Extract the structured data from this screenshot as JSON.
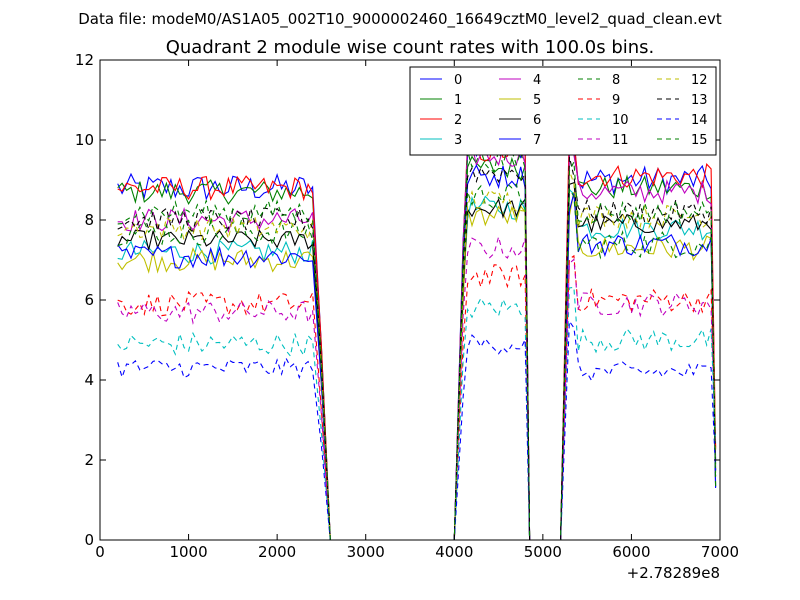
{
  "chart_data": {
    "type": "line",
    "suptitle": "Data file: modeM0/AS1A05_002T10_9000002460_16649cztM0_level2_quad_clean.evt",
    "title": "Quadrant 2 module wise count rates with 100.0s bins.",
    "xlabel": "",
    "ylabel": "",
    "x_offset_label": "+2.78289e8",
    "xlim": [
      0,
      7000
    ],
    "ylim": [
      0,
      12
    ],
    "xticks": [
      0,
      1000,
      2000,
      3000,
      4000,
      5000,
      6000,
      7000
    ],
    "yticks": [
      0,
      2,
      4,
      6,
      8,
      10,
      12
    ],
    "legend_position": "top-right",
    "legend_columns": 4,
    "segments": [
      {
        "x_start": 200,
        "x_end": 2400
      },
      {
        "x_start": 4100,
        "x_end": 4800
      },
      {
        "x_start": 5300,
        "x_end": 6900
      }
    ],
    "series": [
      {
        "name": "0",
        "color": "#0000ff",
        "dash": "solid",
        "seg_levels": [
          8.8,
          9.9,
          9.0
        ],
        "noise": 0.35
      },
      {
        "name": "1",
        "color": "#008000",
        "dash": "solid",
        "seg_levels": [
          8.7,
          9.3,
          8.8
        ],
        "noise": 0.3
      },
      {
        "name": "2",
        "color": "#ff0000",
        "dash": "solid",
        "seg_levels": [
          8.8,
          9.7,
          9.1
        ],
        "noise": 0.3
      },
      {
        "name": "3",
        "color": "#00bfbf",
        "dash": "solid",
        "seg_levels": [
          7.2,
          8.3,
          7.8
        ],
        "noise": 0.3
      },
      {
        "name": "4",
        "color": "#bf00bf",
        "dash": "solid",
        "seg_levels": [
          8.0,
          9.6,
          8.7
        ],
        "noise": 0.3
      },
      {
        "name": "5",
        "color": "#bfbf00",
        "dash": "solid",
        "seg_levels": [
          7.0,
          8.1,
          7.3
        ],
        "noise": 0.3
      },
      {
        "name": "6",
        "color": "#000000",
        "dash": "solid",
        "seg_levels": [
          7.5,
          8.3,
          7.9
        ],
        "noise": 0.25
      },
      {
        "name": "7",
        "color": "#0000ff",
        "dash": "solid",
        "seg_levels": [
          7.1,
          9.1,
          7.4
        ],
        "noise": 0.3
      },
      {
        "name": "8",
        "color": "#008000",
        "dash": "dashed",
        "seg_levels": [
          7.7,
          8.6,
          7.4
        ],
        "noise": 0.35
      },
      {
        "name": "9",
        "color": "#ff0000",
        "dash": "dashed",
        "seg_levels": [
          5.9,
          6.6,
          6.0
        ],
        "noise": 0.3
      },
      {
        "name": "10",
        "color": "#00bfbf",
        "dash": "dashed",
        "seg_levels": [
          4.9,
          5.8,
          5.0
        ],
        "noise": 0.3
      },
      {
        "name": "11",
        "color": "#bf00bf",
        "dash": "dashed",
        "seg_levels": [
          5.7,
          7.3,
          5.9
        ],
        "noise": 0.3
      },
      {
        "name": "12",
        "color": "#bfbf00",
        "dash": "dashed",
        "seg_levels": [
          7.8,
          8.5,
          8.1
        ],
        "noise": 0.3
      },
      {
        "name": "13",
        "color": "#000000",
        "dash": "dashed",
        "seg_levels": [
          8.0,
          9.2,
          8.2
        ],
        "noise": 0.3
      },
      {
        "name": "14",
        "color": "#0000ff",
        "dash": "dashed",
        "seg_levels": [
          4.3,
          4.9,
          4.2
        ],
        "noise": 0.25
      },
      {
        "name": "15",
        "color": "#008000",
        "dash": "dashed",
        "seg_levels": [
          8.2,
          9.5,
          8.2
        ],
        "noise": 0.3
      }
    ]
  }
}
